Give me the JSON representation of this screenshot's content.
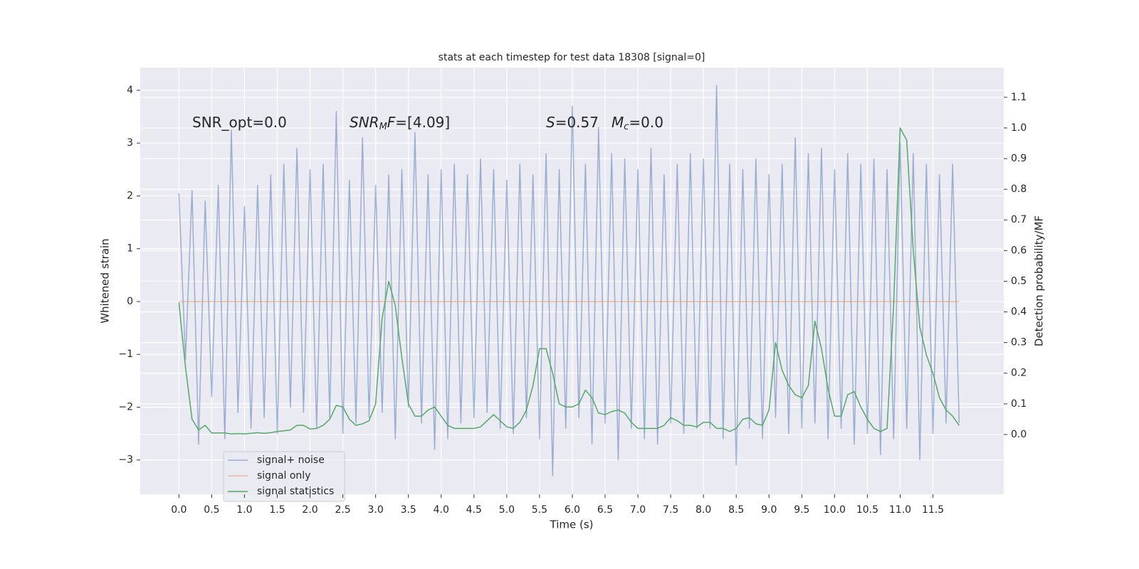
{
  "chart_data": {
    "type": "line",
    "title": "stats at each timestep for test data 18308 [signal=0]",
    "xlabel": "Time (s)",
    "ylabel": "Whitened strain",
    "y2label": "Detection probability/MF",
    "xlim": [
      -0.59,
      12.58
    ],
    "ylim": [
      -3.65,
      4.43
    ],
    "y2lim": [
      -0.195,
      1.197
    ],
    "xticks": [
      {
        "value": 0,
        "label": "0.0"
      },
      0.5,
      {
        "value": 1,
        "label": "1.0"
      },
      1.5,
      {
        "value": 2,
        "label": "2.0"
      },
      2.5,
      {
        "value": 3,
        "label": "3.0"
      },
      3.5,
      {
        "value": 4,
        "label": "4.0"
      },
      4.5,
      {
        "value": 5,
        "label": "5.0"
      },
      5.5,
      {
        "value": 6,
        "label": "6.0"
      },
      6.5,
      {
        "value": 7,
        "label": "7.0"
      },
      7.5,
      {
        "value": 8,
        "label": "8.0"
      },
      8.5,
      {
        "value": 9,
        "label": "9.0"
      },
      9.5,
      {
        "value": 10,
        "label": "10.0"
      },
      10.5,
      {
        "value": 11,
        "label": "11.0"
      },
      11.5
    ],
    "yticks": [
      {
        "value": -3,
        "label": "−3"
      },
      {
        "value": -2,
        "label": "−2"
      },
      {
        "value": -1,
        "label": "−1"
      },
      0,
      1,
      2,
      3,
      4
    ],
    "y2ticks": [
      {
        "value": 0,
        "label": "0.0"
      },
      0.1,
      0.2,
      0.3,
      0.4,
      0.5,
      0.6,
      0.7,
      0.8,
      0.9,
      {
        "value": 1,
        "label": "1.0"
      },
      1.1
    ],
    "grid": true,
    "legend": "lower left",
    "annotations": [
      {
        "segments": [
          {
            "text": "SNR_opt=0.0"
          }
        ]
      },
      {
        "segments": [
          {
            "text": "SNR",
            "style": "italic"
          },
          {
            "text": "M",
            "style": "sub"
          },
          {
            "text": "F",
            "style": "italic"
          },
          {
            "text": "=[4.09]"
          }
        ]
      },
      {
        "segments": [
          {
            "text": "S",
            "style": "italic"
          },
          {
            "text": "=0.57"
          }
        ]
      },
      {
        "segments": [
          {
            "text": "M",
            "style": "italic"
          },
          {
            "text": "c",
            "style": "sub"
          },
          {
            "text": "=0.0"
          }
        ]
      }
    ],
    "x": [
      0,
      0.1,
      0.2,
      0.3,
      0.4,
      0.5,
      0.6,
      0.7,
      0.8,
      0.9,
      1,
      1.1,
      1.2,
      1.3,
      1.4,
      1.5,
      1.6,
      1.7,
      1.8,
      1.9,
      2,
      2.1,
      2.2,
      2.3,
      2.4,
      2.5,
      2.6,
      2.7,
      2.8,
      2.9,
      3,
      3.1,
      3.2,
      3.3,
      3.4,
      3.5,
      3.6,
      3.7,
      3.8,
      3.9,
      4,
      4.1,
      4.2,
      4.3,
      4.4,
      4.5,
      4.6,
      4.7,
      4.8,
      4.9,
      5,
      5.1,
      5.2,
      5.3,
      5.4,
      5.5,
      5.6,
      5.7,
      5.8,
      5.9,
      6,
      6.1,
      6.2,
      6.3,
      6.4,
      6.5,
      6.6,
      6.7,
      6.8,
      6.9,
      7,
      7.1,
      7.2,
      7.3,
      7.4,
      7.5,
      7.6,
      7.7,
      7.8,
      7.9,
      8,
      8.1,
      8.2,
      8.3,
      8.4,
      8.5,
      8.6,
      8.7,
      8.8,
      8.9,
      9,
      9.1,
      9.2,
      9.3,
      9.4,
      9.5,
      9.6,
      9.7,
      9.8,
      9.9,
      10,
      10.1,
      10.2,
      10.3,
      10.4,
      10.5,
      10.6,
      10.7,
      10.8,
      10.9,
      11,
      11.1,
      11.2,
      11.3,
      11.4,
      11.5,
      11.6,
      11.7,
      11.8,
      11.9
    ],
    "series": [
      {
        "name": "signal+ noise",
        "color": "#4c72b0",
        "opacity": 0.5,
        "axis": "y",
        "values": [
          2.05,
          -1.1,
          2.1,
          -2.7,
          1.9,
          -1.8,
          2.2,
          -2.6,
          3.25,
          -2.1,
          1.8,
          -2.4,
          2.2,
          -2.2,
          2.4,
          -2.5,
          2.6,
          -2.0,
          2.9,
          -2.1,
          2.5,
          -2.4,
          2.6,
          -2.2,
          3.6,
          -2.5,
          2.3,
          -2.3,
          3.1,
          -2.2,
          2.2,
          -2.1,
          2.4,
          -2.6,
          2.5,
          -2.0,
          3.2,
          -2.3,
          2.4,
          -2.8,
          2.5,
          -2.6,
          2.6,
          -2.3,
          2.4,
          -2.2,
          2.7,
          -2.1,
          2.5,
          -2.4,
          2.3,
          -2.5,
          2.6,
          -2.2,
          2.4,
          -2.6,
          2.8,
          -3.3,
          2.5,
          -2.4,
          3.7,
          -2.2,
          2.6,
          -2.7,
          3.3,
          -2.3,
          2.8,
          -3.0,
          2.7,
          -2.4,
          2.5,
          -2.6,
          2.9,
          -2.7,
          2.4,
          -2.3,
          2.6,
          -2.5,
          2.8,
          -2.4,
          2.7,
          -2.4,
          4.09,
          -2.6,
          2.6,
          -3.1,
          2.5,
          -2.4,
          2.7,
          -2.6,
          2.4,
          -2.2,
          2.6,
          -2.5,
          3.1,
          -2.4,
          2.8,
          -2.3,
          2.9,
          -2.6,
          2.5,
          -2.4,
          2.8,
          -2.7,
          2.6,
          -2.5,
          2.7,
          -2.9,
          2.5,
          -2.6,
          3.0,
          -2.4,
          2.8,
          -3.0,
          2.6,
          -2.5,
          2.4,
          -2.3,
          2.6,
          -2.3
        ]
      },
      {
        "name": "signal only",
        "color": "#dd8452",
        "opacity": 0.5,
        "axis": "y",
        "values": [
          0,
          0,
          0,
          0,
          0,
          0,
          0,
          0,
          0,
          0,
          0,
          0,
          0,
          0,
          0,
          0,
          0,
          0,
          0,
          0,
          0,
          0,
          0,
          0,
          0,
          0,
          0,
          0,
          0,
          0,
          0,
          0,
          0,
          0,
          0,
          0,
          0,
          0,
          0,
          0,
          0,
          0,
          0,
          0,
          0,
          0,
          0,
          0,
          0,
          0,
          0,
          0,
          0,
          0,
          0,
          0,
          0,
          0,
          0,
          0,
          0,
          0,
          0,
          0,
          0,
          0,
          0,
          0,
          0,
          0,
          0,
          0,
          0,
          0,
          0,
          0,
          0,
          0,
          0,
          0,
          0,
          0,
          0,
          0,
          0,
          0,
          0,
          0,
          0,
          0,
          0,
          0,
          0,
          0,
          0,
          0,
          0,
          0,
          0,
          0,
          0,
          0,
          0,
          0,
          0,
          0,
          0,
          0,
          0,
          0,
          0,
          0,
          0,
          0,
          0,
          0,
          0,
          0,
          0,
          0
        ]
      },
      {
        "name": "signal statistics",
        "color": "#55a868",
        "opacity": 1,
        "axis": "y2",
        "values": [
          0.43,
          0.22,
          0.05,
          0.015,
          0.03,
          0.005,
          0.005,
          0.005,
          0.002,
          0.003,
          0.002,
          0.004,
          0.006,
          0.004,
          0.006,
          0.01,
          0.012,
          0.015,
          0.03,
          0.03,
          0.018,
          0.02,
          0.03,
          0.05,
          0.095,
          0.09,
          0.05,
          0.03,
          0.035,
          0.045,
          0.1,
          0.38,
          0.5,
          0.42,
          0.25,
          0.1,
          0.06,
          0.06,
          0.08,
          0.09,
          0.06,
          0.03,
          0.02,
          0.02,
          0.02,
          0.02,
          0.025,
          0.045,
          0.065,
          0.045,
          0.025,
          0.02,
          0.04,
          0.08,
          0.16,
          0.28,
          0.28,
          0.2,
          0.1,
          0.09,
          0.09,
          0.1,
          0.145,
          0.12,
          0.07,
          0.065,
          0.075,
          0.08,
          0.07,
          0.04,
          0.02,
          0.02,
          0.02,
          0.02,
          0.03,
          0.055,
          0.045,
          0.03,
          0.03,
          0.025,
          0.04,
          0.04,
          0.02,
          0.02,
          0.01,
          0.02,
          0.05,
          0.055,
          0.035,
          0.03,
          0.08,
          0.3,
          0.21,
          0.16,
          0.13,
          0.12,
          0.16,
          0.37,
          0.28,
          0.15,
          0.06,
          0.06,
          0.13,
          0.14,
          0.09,
          0.05,
          0.02,
          0.01,
          0.02,
          0.42,
          1.0,
          0.96,
          0.6,
          0.35,
          0.26,
          0.2,
          0.12,
          0.08,
          0.06,
          0.03
        ]
      }
    ]
  }
}
